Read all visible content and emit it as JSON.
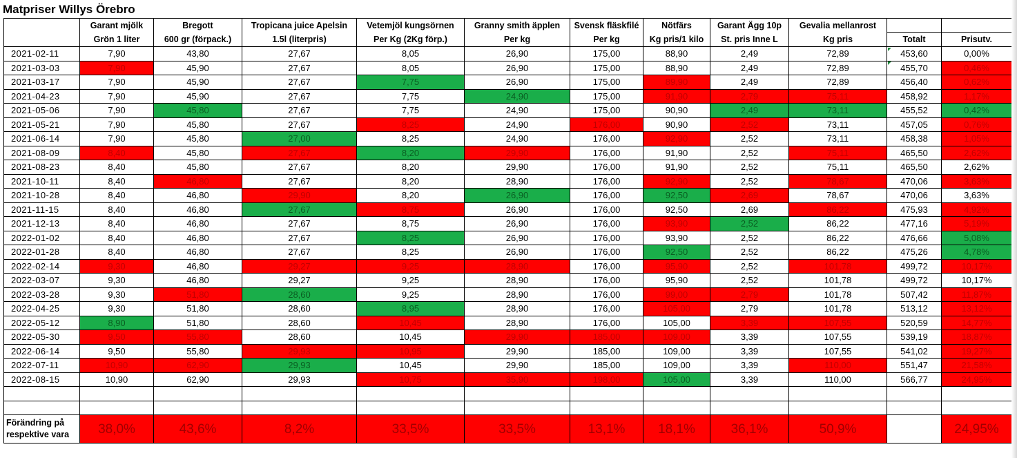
{
  "title": "Matpriser Willys Örebro",
  "headers": {
    "line1": [
      "",
      "Garant mjölk",
      "Bregott",
      "Tropicana juice Apelsin",
      "Vetemjöl kungsörnen",
      "Granny smith äpplen",
      "Svensk fläskfilé",
      "Nötfärs",
      "Garant Ägg 10p",
      "Gevalia mellanrost",
      "",
      ""
    ],
    "line2": [
      "",
      "Grön 1 liter",
      "600 gr (förpack.)",
      "1.5l (literpris)",
      "Per Kg (2Kg förp.)",
      "Per kg",
      "Per kg",
      "Kg pris/1 kilo",
      "St. pris Inne L",
      "Kg pris",
      "Totalt",
      "Prisutv."
    ]
  },
  "colors": {
    "increase": "#ff0000",
    "decrease": "#1aae4a"
  },
  "rows": [
    {
      "cells": [
        "2021-02-11",
        "7,90",
        "43,80",
        "27,67",
        "8,05",
        "26,90",
        "175,00",
        "88,90",
        "2,49",
        "72,89",
        "453,60",
        "0,00%"
      ],
      "marks": "..........."
    },
    {
      "cells": [
        "2021-03-03",
        "7,90",
        "45,90",
        "27,67",
        "8,05",
        "26,90",
        "175,00",
        "88,90",
        "2,49",
        "72,89",
        "455,70",
        "0,46%"
      ],
      "marks": ".r.........r"
    },
    {
      "cells": [
        "2021-03-17",
        "7,90",
        "45,90",
        "27,67",
        "7,75",
        "26,90",
        "175,00",
        "89,90",
        "2,49",
        "72,89",
        "456,40",
        "0,62%"
      ],
      "marks": "....g..r...r"
    },
    {
      "cells": [
        "2021-04-23",
        "7,90",
        "45,90",
        "27,67",
        "7,75",
        "24,90",
        "175,00",
        "91,90",
        "2,79",
        "75,11",
        "458,92",
        "1,17%"
      ],
      "marks": ".....g.rrr.r"
    },
    {
      "cells": [
        "2021-05-06",
        "7,90",
        "45,80",
        "27,67",
        "7,75",
        "24,90",
        "175,00",
        "90,90",
        "2,49",
        "73,11",
        "455,52",
        "0,42%"
      ],
      "marks": "..g.....gg.g"
    },
    {
      "cells": [
        "2021-05-21",
        "7,90",
        "45,80",
        "27,67",
        "8,25",
        "24,90",
        "176,00",
        "90,90",
        "2,52",
        "73,11",
        "457,05",
        "0,76%"
      ],
      "marks": "....r.r.r..r"
    },
    {
      "cells": [
        "2021-06-14",
        "7,90",
        "45,80",
        "27,00",
        "8,25",
        "24,90",
        "176,00",
        "92,90",
        "2,52",
        "73,11",
        "458,38",
        "1,05%"
      ],
      "marks": "...g...r...r"
    },
    {
      "cells": [
        "2021-08-09",
        "8,40",
        "45,80",
        "27,67",
        "8,20",
        "29,90",
        "176,00",
        "91,90",
        "2,52",
        "75,11",
        "465,50",
        "2,62%"
      ],
      "marks": ".r.rgr...r.r"
    },
    {
      "cells": [
        "2021-08-23",
        "8,40",
        "45,80",
        "27,67",
        "8,20",
        "29,90",
        "176,00",
        "91,90",
        "2,52",
        "75,11",
        "465,50",
        "2,62%"
      ],
      "marks": "............"
    },
    {
      "cells": [
        "2021-10-11",
        "8,40",
        "46,80",
        "27,67",
        "8,20",
        "28,90",
        "176,00",
        "92,90",
        "2,52",
        "78,67",
        "470,06",
        "3,63%"
      ],
      "marks": "..r....r.r.r"
    },
    {
      "cells": [
        "2021-10-28",
        "8,40",
        "46,80",
        "29,90",
        "8,20",
        "26,90",
        "176,00",
        "92,50",
        "2,69",
        "78,67",
        "470,06",
        "3,63%"
      ],
      "marks": "...r.g.gr..."
    },
    {
      "cells": [
        "2021-11-15",
        "8,40",
        "46,80",
        "27,67",
        "8,75",
        "26,90",
        "176,00",
        "92,50",
        "2,69",
        "86,22",
        "475,93",
        "4,92%"
      ],
      "marks": "...gr....r.r"
    },
    {
      "cells": [
        "2021-12-13",
        "8,40",
        "46,80",
        "27,67",
        "8,75",
        "26,90",
        "176,00",
        "93,90",
        "2,52",
        "86,22",
        "477,16",
        "5,19%"
      ],
      "marks": ".......rg..r"
    },
    {
      "cells": [
        "2022-01-02",
        "8,40",
        "46,80",
        "27,67",
        "8,25",
        "26,90",
        "176,00",
        "93,90",
        "2,52",
        "86,22",
        "476,66",
        "5,08%"
      ],
      "marks": "....g......g"
    },
    {
      "cells": [
        "2022-01-28",
        "8,40",
        "46,80",
        "27,67",
        "8,25",
        "26,90",
        "176,00",
        "92,50",
        "2,52",
        "86,22",
        "475,26",
        "4,78%"
      ],
      "marks": ".......g...g"
    },
    {
      "cells": [
        "2022-02-14",
        "9,30",
        "46,80",
        "29,27",
        "9,25",
        "28,90",
        "176,00",
        "95,90",
        "2,52",
        "101,78",
        "499,72",
        "10,17%"
      ],
      "marks": ".r.rrr.r.r.r"
    },
    {
      "cells": [
        "2022-03-07",
        "9,30",
        "46,80",
        "29,27",
        "9,25",
        "28,90",
        "176,00",
        "95,90",
        "2,52",
        "101,78",
        "499,72",
        "10,17%"
      ],
      "marks": "............"
    },
    {
      "cells": [
        "2022-03-28",
        "9,30",
        "51,80",
        "28,60",
        "9,25",
        "28,90",
        "176,00",
        "99,00",
        "2,79",
        "101,78",
        "507,42",
        "11,87%"
      ],
      "marks": "..rg...rr..r"
    },
    {
      "cells": [
        "2022-04-25",
        "9,30",
        "51,80",
        "28,60",
        "8,95",
        "28,90",
        "176,00",
        "105,00",
        "2,79",
        "101,78",
        "513,12",
        "13,12%"
      ],
      "marks": "....g..r...r"
    },
    {
      "cells": [
        "2022-05-12",
        "8,90",
        "51,80",
        "28,60",
        "10,45",
        "28,90",
        "176,00",
        "105,00",
        "3,39",
        "107,55",
        "520,59",
        "14,77%"
      ],
      "marks": ".g..r...rr.r"
    },
    {
      "cells": [
        "2022-05-30",
        "9,50",
        "55,80",
        "28,60",
        "10,45",
        "29,90",
        "185,00",
        "109,00",
        "3,39",
        "107,55",
        "539,19",
        "18,87%"
      ],
      "marks": ".rr..rrr...r"
    },
    {
      "cells": [
        "2022-06-14",
        "9,50",
        "55,80",
        "29,93",
        "10,95",
        "29,90",
        "185,00",
        "109,00",
        "3,39",
        "107,55",
        "541,02",
        "19,27%"
      ],
      "marks": "...rr......r"
    },
    {
      "cells": [
        "2022-07-11",
        "10,90",
        "62,90",
        "29,93",
        "10,45",
        "29,90",
        "185,00",
        "109,00",
        "3,39",
        "110,00",
        "551,47",
        "21,58%"
      ],
      "marks": ".rrg.....r.r"
    },
    {
      "cells": [
        "2022-08-15",
        "10,90",
        "62,90",
        "29,93",
        "10,75",
        "35,90",
        "198,00",
        "105,00",
        "3,39",
        "110,00",
        "566,77",
        "24,95%"
      ],
      "marks": "....rrrg...r"
    }
  ],
  "summary": {
    "label": "Förändring på respektive vara",
    "values": [
      "38,0%",
      "43,6%",
      "8,2%",
      "33,5%",
      "33,5%",
      "13,1%",
      "18,1%",
      "36,1%",
      "50,9%",
      "",
      "24,95%"
    ]
  }
}
